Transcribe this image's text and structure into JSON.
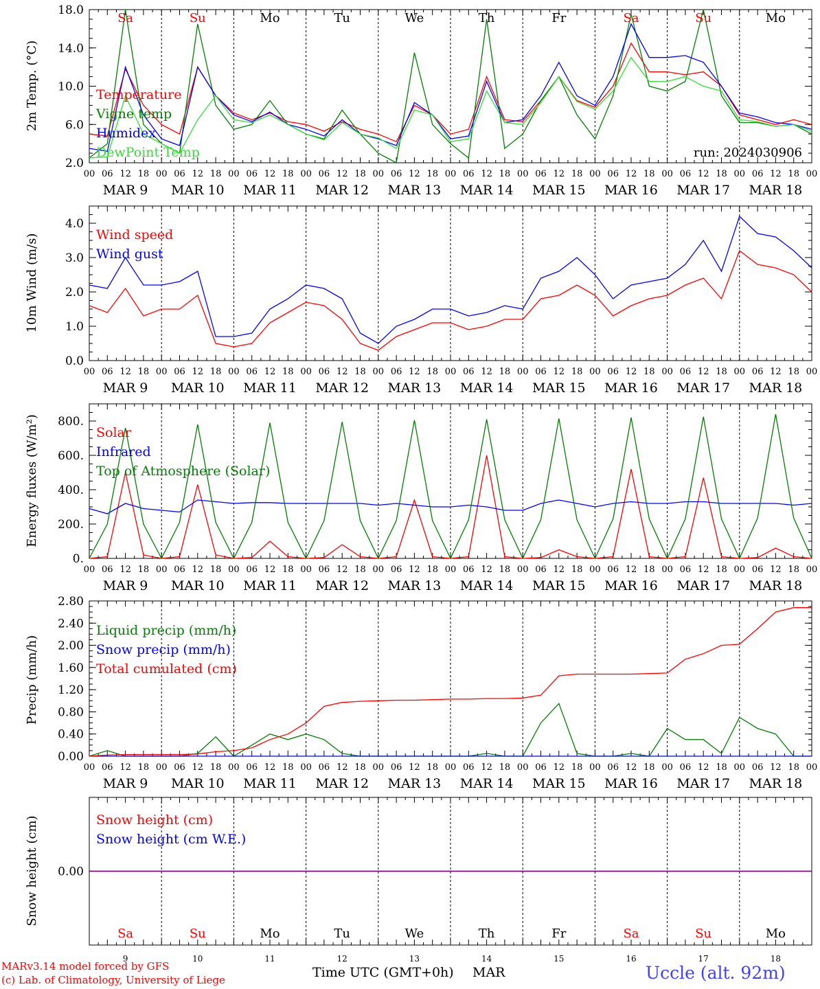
{
  "colors": {
    "red": "#ff0000",
    "green": "#008000",
    "blue": "#0000ff",
    "lightgreen": "#33dd33",
    "purple": "#800080",
    "black": "#000000"
  },
  "days": [
    "9",
    "10",
    "11",
    "12",
    "13",
    "14",
    "15",
    "16",
    "17",
    "18"
  ],
  "month": "MAR",
  "weekdays": [
    "Sa",
    "Su",
    "Mo",
    "Tu",
    "We",
    "Th",
    "Fr",
    "Sa",
    "Su",
    "Mo"
  ],
  "weekend": [
    true,
    true,
    false,
    false,
    false,
    false,
    false,
    true,
    true,
    false
  ],
  "hour_ticks": [
    "00",
    "06",
    "12",
    "18"
  ],
  "run_label": "run: 2024030906",
  "footer": {
    "model": "MARv3.14 model forced by GFS",
    "copyright": "(c) Lab. of Climatology, University of Liege",
    "xlabel": "Time UTC (GMT+0h)",
    "month": "MAR",
    "station": "Uccle (alt. 92m)"
  },
  "chart_data": [
    {
      "type": "line",
      "ylabel": "2m Temp. (°C)",
      "ylim": [
        2,
        18
      ],
      "yticks": [
        "2.0",
        "6.0",
        "10.0",
        "14.0",
        "18.0"
      ],
      "ytickvals": [
        2,
        6,
        10,
        14,
        18
      ],
      "x_hours": [
        0,
        6,
        12,
        18,
        24,
        30,
        36,
        42,
        48,
        54,
        60,
        66,
        72,
        78,
        84,
        90,
        96,
        102,
        108,
        114,
        120,
        126,
        132,
        138,
        144,
        150,
        156,
        162,
        168,
        174,
        180,
        186,
        192,
        198,
        204,
        210,
        216,
        222,
        228,
        234,
        240
      ],
      "series": [
        {
          "name": "Temperature",
          "color": "red",
          "values": [
            5,
            4.8,
            11.8,
            8,
            6,
            5,
            12,
            9,
            7.2,
            6.5,
            7.2,
            6.3,
            6,
            5.3,
            6.3,
            5.5,
            5,
            4.2,
            8,
            7,
            5,
            5.5,
            11,
            6.5,
            6.3,
            8.5,
            11,
            8.5,
            7.8,
            10,
            14.5,
            11.5,
            11.5,
            11.2,
            11.5,
            10,
            7,
            6.5,
            6,
            6.5,
            6
          ]
        },
        {
          "name": "Vigne temp",
          "color": "green",
          "values": [
            2.5,
            4,
            18,
            6,
            4,
            3,
            16.5,
            8,
            5.5,
            6,
            8.5,
            6,
            5,
            4.5,
            7.5,
            5,
            3,
            2,
            13.5,
            6,
            4,
            2.5,
            17,
            3.5,
            5,
            8.5,
            11,
            7,
            4.5,
            9,
            17.5,
            10,
            9.5,
            10.5,
            18,
            9,
            6.2,
            6.2,
            5.8,
            6,
            5
          ]
        },
        {
          "name": "Humidex",
          "color": "blue",
          "values": [
            3.5,
            3.2,
            12,
            7,
            4.5,
            3.8,
            12,
            9,
            7,
            6.3,
            7.3,
            6,
            5.5,
            4.8,
            6.5,
            5,
            4.5,
            3.8,
            8.3,
            7,
            4.5,
            4.8,
            10.5,
            6.2,
            6.5,
            9,
            12.5,
            9,
            8,
            11,
            16.5,
            13,
            13,
            13.2,
            12.5,
            10,
            7.2,
            6.8,
            6.2,
            6,
            5.5
          ]
        },
        {
          "name": "DewPoint Temp",
          "color": "lightgreen",
          "values": [
            2.5,
            2.6,
            9,
            5,
            4,
            3,
            6.5,
            9,
            6.5,
            6.2,
            7,
            6,
            5,
            4.4,
            6.2,
            5,
            4.6,
            3.5,
            7.5,
            7,
            4.2,
            4.5,
            9.5,
            6.2,
            6,
            8.3,
            11,
            8.4,
            7.6,
            9.5,
            13,
            10.5,
            10.5,
            11,
            10,
            9.5,
            6.5,
            6.3,
            5.8,
            6,
            5.3
          ]
        }
      ]
    },
    {
      "type": "line",
      "ylabel": "10m Wind (m/s)",
      "ylim": [
        0,
        4.5
      ],
      "yticks": [
        "0.0",
        "1.0",
        "2.0",
        "3.0",
        "4.0"
      ],
      "ytickvals": [
        0,
        1,
        2,
        3,
        4
      ],
      "x_hours": [
        0,
        6,
        12,
        18,
        24,
        30,
        36,
        42,
        48,
        54,
        60,
        66,
        72,
        78,
        84,
        90,
        96,
        102,
        108,
        114,
        120,
        126,
        132,
        138,
        144,
        150,
        156,
        162,
        168,
        174,
        180,
        186,
        192,
        198,
        204,
        210,
        216,
        222,
        228,
        234,
        240
      ],
      "series": [
        {
          "name": "Wind speed",
          "color": "red",
          "values": [
            1.6,
            1.4,
            2.1,
            1.3,
            1.5,
            1.5,
            1.9,
            0.5,
            0.4,
            0.5,
            1.1,
            1.4,
            1.7,
            1.6,
            1.2,
            0.5,
            0.3,
            0.7,
            0.9,
            1.1,
            1.1,
            0.9,
            1,
            1.2,
            1.2,
            1.8,
            1.9,
            2.2,
            1.9,
            1.3,
            1.6,
            1.8,
            1.9,
            2.2,
            2.4,
            1.8,
            3.2,
            2.8,
            2.7,
            2.5,
            2
          ]
        },
        {
          "name": "Wind gust",
          "color": "blue",
          "values": [
            2.2,
            2.1,
            3,
            2.2,
            2.2,
            2.3,
            2.6,
            0.7,
            0.7,
            0.8,
            1.5,
            1.8,
            2.2,
            2.1,
            1.8,
            0.8,
            0.5,
            1,
            1.2,
            1.5,
            1.5,
            1.3,
            1.4,
            1.6,
            1.5,
            2.4,
            2.6,
            3,
            2.5,
            1.8,
            2.2,
            2.3,
            2.4,
            2.8,
            3.5,
            2.6,
            4.2,
            3.7,
            3.6,
            3.2,
            2.7
          ]
        }
      ]
    },
    {
      "type": "line",
      "ylabel": "Energy fluxes (W/m²)",
      "ylim": [
        0,
        900
      ],
      "yticks": [
        "0.",
        "200.",
        "400.",
        "600.",
        "800."
      ],
      "ytickvals": [
        0,
        200,
        400,
        600,
        800
      ],
      "x_hours": [
        0,
        6,
        12,
        18,
        24,
        30,
        36,
        42,
        48,
        54,
        60,
        66,
        72,
        78,
        84,
        90,
        96,
        102,
        108,
        114,
        120,
        126,
        132,
        138,
        144,
        150,
        156,
        162,
        168,
        174,
        180,
        186,
        192,
        198,
        204,
        210,
        216,
        222,
        228,
        234,
        240
      ],
      "series": [
        {
          "name": "Solar",
          "color": "red",
          "values": [
            0,
            10,
            500,
            20,
            0,
            10,
            430,
            20,
            0,
            5,
            100,
            10,
            0,
            5,
            80,
            10,
            0,
            10,
            340,
            10,
            0,
            10,
            600,
            10,
            0,
            5,
            50,
            10,
            0,
            10,
            520,
            10,
            0,
            10,
            470,
            10,
            0,
            5,
            60,
            10,
            0
          ]
        },
        {
          "name": "Infrared",
          "color": "blue",
          "values": [
            290,
            260,
            320,
            290,
            280,
            270,
            340,
            330,
            320,
            325,
            325,
            320,
            320,
            320,
            320,
            320,
            310,
            320,
            310,
            300,
            300,
            310,
            300,
            280,
            280,
            320,
            340,
            320,
            300,
            320,
            330,
            320,
            320,
            330,
            330,
            320,
            320,
            320,
            320,
            310,
            320
          ]
        },
        {
          "name": "Top of Atmosphere (Solar)",
          "color": "green",
          "values": [
            0,
            200,
            760,
            200,
            0,
            210,
            780,
            210,
            0,
            210,
            790,
            210,
            0,
            220,
            795,
            220,
            0,
            220,
            805,
            220,
            0,
            225,
            810,
            225,
            0,
            225,
            815,
            225,
            0,
            230,
            820,
            230,
            0,
            230,
            825,
            230,
            0,
            235,
            840,
            235,
            0
          ]
        }
      ]
    },
    {
      "type": "line",
      "ylabel": "Precip (mm/h)",
      "ylim": [
        0,
        2.8
      ],
      "yticks": [
        "0.00",
        "0.40",
        "0.80",
        "1.20",
        "1.60",
        "2.00",
        "2.40",
        "2.80"
      ],
      "ytickvals": [
        0,
        0.4,
        0.8,
        1.2,
        1.6,
        2,
        2.4,
        2.8
      ],
      "x_hours": [
        0,
        6,
        12,
        18,
        24,
        30,
        36,
        42,
        48,
        54,
        60,
        66,
        72,
        78,
        84,
        90,
        96,
        102,
        108,
        114,
        120,
        126,
        132,
        138,
        144,
        150,
        156,
        162,
        168,
        174,
        180,
        186,
        192,
        198,
        204,
        210,
        216,
        222,
        228,
        234,
        240
      ],
      "series": [
        {
          "name": "Liquid precip (mm/h)",
          "color": "green",
          "values": [
            0,
            0.1,
            0,
            0,
            0,
            0,
            0.05,
            0.35,
            0,
            0.2,
            0.4,
            0.3,
            0.4,
            0.3,
            0.05,
            0,
            0,
            0,
            0,
            0,
            0,
            0,
            0.05,
            0,
            0,
            0.6,
            0.95,
            0.05,
            0,
            0,
            0.05,
            0,
            0.5,
            0.3,
            0.3,
            0.05,
            0.7,
            0.5,
            0.4,
            0,
            0
          ]
        },
        {
          "name": "Snow precip (mm/h)",
          "color": "blue",
          "values": [
            0,
            0,
            0,
            0,
            0,
            0,
            0,
            0,
            0,
            0,
            0,
            0,
            0,
            0,
            0,
            0,
            0,
            0,
            0,
            0,
            0,
            0,
            0,
            0,
            0,
            0,
            0,
            0,
            0,
            0,
            0,
            0,
            0,
            0,
            0,
            0,
            0,
            0,
            0,
            0,
            0
          ]
        },
        {
          "name": "Total cumulated (cm)",
          "color": "red",
          "values": [
            0,
            0.02,
            0.03,
            0.03,
            0.03,
            0.03,
            0.04,
            0.08,
            0.1,
            0.15,
            0.3,
            0.4,
            0.6,
            0.9,
            0.97,
            0.99,
            1.0,
            1.01,
            1.01,
            1.02,
            1.03,
            1.03,
            1.04,
            1.04,
            1.05,
            1.1,
            1.45,
            1.48,
            1.48,
            1.48,
            1.48,
            1.49,
            1.5,
            1.75,
            1.85,
            2.0,
            2.02,
            2.3,
            2.6,
            2.68,
            2.68
          ]
        }
      ]
    },
    {
      "type": "line",
      "ylabel": "Snow height (cm)",
      "ylim": [
        -1,
        1
      ],
      "yticks": [
        "0.00"
      ],
      "ytickvals": [
        0
      ],
      "x_hours": [
        0,
        240
      ],
      "series": [
        {
          "name": "Snow height (cm)",
          "color": "red",
          "values": [
            0,
            0
          ]
        },
        {
          "name": "Snow height (cm W.E.)",
          "color": "blue",
          "values": [
            0,
            0
          ]
        }
      ]
    }
  ]
}
